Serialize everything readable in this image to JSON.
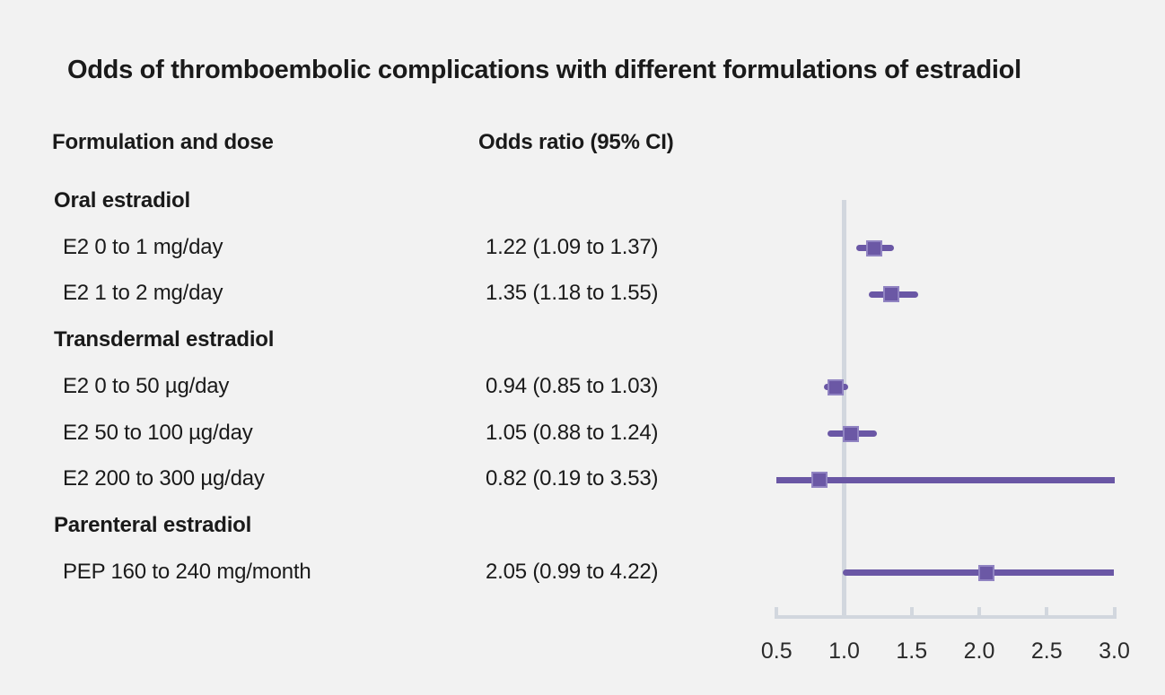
{
  "title": "Odds of thromboembolic complications with different formulations of estradiol",
  "columns": {
    "formulation": "Formulation and dose",
    "odds_ratio": "Odds ratio (95% CI)"
  },
  "rows": [
    {
      "type": "group",
      "label": "Oral estradiol"
    },
    {
      "type": "item",
      "label": "E2 0 to 1 mg/day",
      "or_text": "1.22 (1.09 to 1.37)",
      "est": 1.22,
      "lo": 1.09,
      "hi": 1.37
    },
    {
      "type": "item",
      "label": "E2 1 to 2 mg/day",
      "or_text": "1.35 (1.18 to 1.55)",
      "est": 1.35,
      "lo": 1.18,
      "hi": 1.55
    },
    {
      "type": "group",
      "label": "Transdermal estradiol"
    },
    {
      "type": "item",
      "label": "E2 0 to 50 µg/day",
      "or_text": "0.94 (0.85 to 1.03)",
      "est": 0.94,
      "lo": 0.85,
      "hi": 1.03
    },
    {
      "type": "item",
      "label": "E2 50 to 100 µg/day",
      "or_text": "1.05 (0.88 to 1.24)",
      "est": 1.05,
      "lo": 0.88,
      "hi": 1.24
    },
    {
      "type": "item",
      "label": "E2 200 to 300 µg/day",
      "or_text": "0.82 (0.19 to 3.53)",
      "est": 0.82,
      "lo": 0.19,
      "hi": 3.53
    },
    {
      "type": "group",
      "label": "Parenteral estradiol"
    },
    {
      "type": "item",
      "label": "PEP 160 to 240 mg/month",
      "or_text": "2.05 (0.99 to 4.22)",
      "est": 2.05,
      "lo": 0.99,
      "hi": 4.22
    }
  ],
  "axis": {
    "min": 0.5,
    "max": 3.0,
    "reference": 1.0,
    "tick_values": [
      0.5,
      1.0,
      1.5,
      2.0,
      2.5,
      3.0
    ],
    "tick_labels": [
      "0.5",
      "1.0",
      "1.5",
      "2.0",
      "2.5",
      "3.0"
    ]
  },
  "colors": {
    "background": "#f2f2f2",
    "text": "#1a1a1a",
    "ci_line": "#6a57a5",
    "marker_fill": "#6b58a5",
    "marker_border": "#9184c2",
    "axis_line": "#d2d7de"
  },
  "chart_data": {
    "type": "scatter",
    "subtype": "forest-plot",
    "title": "Odds of thromboembolic complications with different formulations of estradiol",
    "xlabel": "Odds ratio (95% CI)",
    "xlim": [
      0.5,
      3.0
    ],
    "x_ticks": [
      0.5,
      1.0,
      1.5,
      2.0,
      2.5,
      3.0
    ],
    "reference_line_x": 1.0,
    "grid": false,
    "legend": false,
    "note": "CI bars clipped to x-axis range [0.5, 3.0]",
    "series": [
      {
        "name": "Oral estradiol",
        "points": [
          {
            "label": "E2 0 to 1 mg/day",
            "odds_ratio": 1.22,
            "ci_low": 1.09,
            "ci_high": 1.37
          },
          {
            "label": "E2 1 to 2 mg/day",
            "odds_ratio": 1.35,
            "ci_low": 1.18,
            "ci_high": 1.55
          }
        ]
      },
      {
        "name": "Transdermal estradiol",
        "points": [
          {
            "label": "E2 0 to 50 µg/day",
            "odds_ratio": 0.94,
            "ci_low": 0.85,
            "ci_high": 1.03
          },
          {
            "label": "E2 50 to 100 µg/day",
            "odds_ratio": 1.05,
            "ci_low": 0.88,
            "ci_high": 1.24
          },
          {
            "label": "E2 200 to 300 µg/day",
            "odds_ratio": 0.82,
            "ci_low": 0.19,
            "ci_high": 3.53
          }
        ]
      },
      {
        "name": "Parenteral estradiol",
        "points": [
          {
            "label": "PEP 160 to 240 mg/month",
            "odds_ratio": 2.05,
            "ci_low": 0.99,
            "ci_high": 4.22
          }
        ]
      }
    ]
  }
}
